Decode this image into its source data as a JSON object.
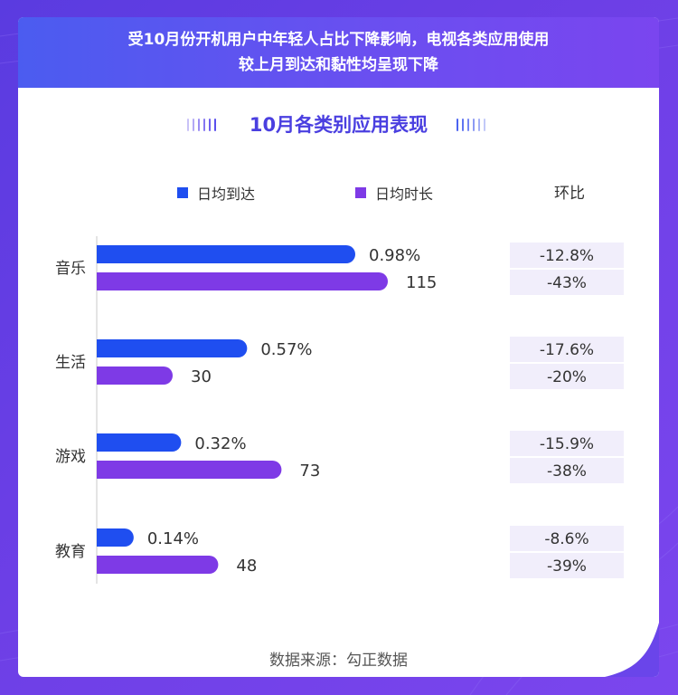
{
  "header": {
    "line1": "受10月份开机用户中年轻人占比下降影响，电视各类应用使用",
    "line2": "较上月到达和黏性均呈现下降"
  },
  "section_title": "10月各类别应用表现",
  "legend": {
    "reach_label": "日均到达",
    "duration_label": "日均时长",
    "change_header": "环比"
  },
  "colors": {
    "reach": "#1f4ef0",
    "duration": "#7e3ae6",
    "change_bg": "#f1eefb",
    "deco_left": "#8a7bf0",
    "deco_right": "#4d68f0"
  },
  "footer": "数据来源：勾正数据",
  "chart_data": {
    "type": "bar",
    "orientation": "horizontal",
    "title": "10月各类别应用表现",
    "categories": [
      "音乐",
      "生活",
      "游戏",
      "教育"
    ],
    "series": [
      {
        "name": "日均到达",
        "values": [
          0.98,
          0.57,
          0.32,
          0.14
        ],
        "labels": [
          "0.98%",
          "0.57%",
          "0.32%",
          "0.14%"
        ],
        "color": "#1f4ef0"
      },
      {
        "name": "日均时长",
        "values": [
          115,
          30,
          73,
          48
        ],
        "labels": [
          "115",
          "30",
          "73",
          "48"
        ],
        "color": "#7e3ae6"
      }
    ],
    "change": {
      "name": "环比",
      "reach": [
        "-12.8%",
        "-17.6%",
        "-15.9%",
        "-8.6%"
      ],
      "duration": [
        "-43%",
        "-20%",
        "-38%",
        "-39%"
      ]
    },
    "legend_position": "top",
    "grid": false
  }
}
